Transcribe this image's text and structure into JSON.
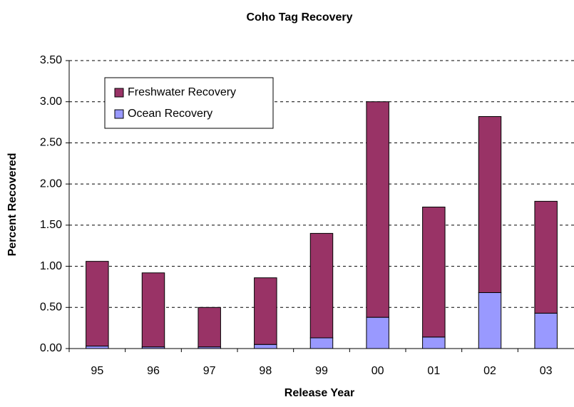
{
  "chart_data": {
    "type": "stacked_bar",
    "title": "Coho Tag Recovery",
    "x_label": "Release Year",
    "y_label": "Percent Recovered",
    "categories": [
      "95",
      "96",
      "97",
      "98",
      "99",
      "00",
      "01",
      "02",
      "03"
    ],
    "series": [
      {
        "name": "Freshwater Recovery",
        "color": "#993366",
        "values": [
          1.03,
          0.9,
          0.48,
          0.81,
          1.27,
          2.62,
          1.58,
          2.14,
          1.36
        ]
      },
      {
        "name": "Ocean Recovery",
        "color": "#9999ff",
        "values": [
          0.03,
          0.02,
          0.02,
          0.05,
          0.13,
          0.38,
          0.14,
          0.68,
          0.43
        ]
      }
    ],
    "stack_order": [
      1,
      0
    ],
    "ylim": [
      0,
      3.5
    ],
    "yticks": [
      {
        "value": 0,
        "label": "0.00"
      },
      {
        "value": 0.5,
        "label": "0.50"
      },
      {
        "value": 1,
        "label": "1.00"
      },
      {
        "value": 1.5,
        "label": "1.50"
      },
      {
        "value": 2,
        "label": "2.00"
      },
      {
        "value": 2.5,
        "label": "2.50"
      },
      {
        "value": 3,
        "label": "3.00"
      },
      {
        "value": 3.5,
        "label": "3.50"
      }
    ],
    "grid": true,
    "legend": "upper left"
  }
}
